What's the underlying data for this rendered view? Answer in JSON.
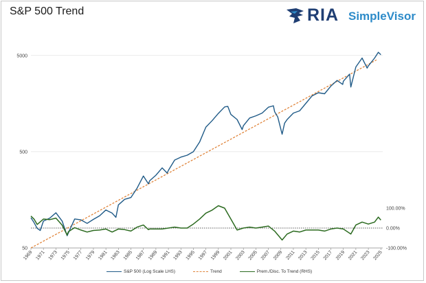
{
  "chart_data": {
    "type": "line",
    "title": "S&P 500 Trend",
    "logo": {
      "text_main": "RIA",
      "text_sub": "SimpleVisor"
    },
    "colors": {
      "sp500": "#1f5a87",
      "trend": "#e0843a",
      "premium": "#2b6a1f",
      "zero_line": "#222222"
    },
    "x_axis": {
      "ticks": [
        "1969",
        "1971",
        "1973",
        "1975",
        "1977",
        "1979",
        "1981",
        "1983",
        "1985",
        "1987",
        "1989",
        "1991",
        "1993",
        "1995",
        "1997",
        "1999",
        "2001",
        "2003",
        "2005",
        "2007",
        "2009",
        "2011",
        "2013",
        "2015",
        "2017",
        "2019",
        "2021",
        "2023",
        "2025"
      ],
      "range": [
        1969,
        2025.3
      ]
    },
    "y_axis_left": {
      "scale": "log",
      "ticks": [
        "5000",
        "500",
        "50"
      ],
      "tick_values": [
        5000,
        500,
        50
      ],
      "range": [
        50,
        9000
      ]
    },
    "y_axis_right": {
      "ticks": [
        "100.00%",
        "0.00%",
        "-100.00%"
      ],
      "tick_values": [
        100,
        0,
        -100
      ],
      "range": [
        -100,
        100
      ]
    },
    "trend": {
      "x": [
        1969,
        2024.3
      ],
      "y": [
        50,
        4500
      ]
    },
    "series": [
      {
        "name": "S&P 500 (Log Scale LHS)",
        "x": [
          1969,
          1969.5,
          1970,
          1970.5,
          1971,
          1972,
          1973,
          1974,
          1974.8,
          1975,
          1976,
          1977,
          1978,
          1979,
          1980,
          1981,
          1982,
          1982.6,
          1983,
          1984,
          1985,
          1986,
          1987,
          1987.8,
          1988,
          1989,
          1990,
          1990.8,
          1991,
          1992,
          1993,
          1994,
          1995,
          1996,
          1997,
          1998,
          1999,
          2000,
          2000.5,
          2001,
          2002,
          2002.8,
          2003,
          2004,
          2005,
          2006,
          2007,
          2007.8,
          2008,
          2008.5,
          2009.2,
          2009.6,
          2010,
          2011,
          2012,
          2013,
          2014,
          2015,
          2016,
          2017,
          2018,
          2018.9,
          2019,
          2020,
          2020.2,
          2021,
          2022,
          2022.8,
          2023,
          2024,
          2024.6,
          2025
        ],
        "y": [
          103,
          92,
          80,
          76,
          95,
          102,
          116,
          95,
          67,
          72,
          100,
          98,
          90,
          99,
          108,
          124,
          115,
          104,
          140,
          160,
          167,
          210,
          280,
          232,
          250,
          285,
          340,
          300,
          320,
          410,
          440,
          460,
          500,
          630,
          900,
          1050,
          1250,
          1460,
          1480,
          1220,
          1080,
          850,
          930,
          1120,
          1180,
          1260,
          1450,
          1500,
          1300,
          1150,
          760,
          990,
          1080,
          1260,
          1330,
          1590,
          1900,
          2050,
          2000,
          2400,
          2750,
          2500,
          2700,
          3200,
          2350,
          3800,
          4700,
          3700,
          3900,
          4700,
          5400,
          5100
        ]
      },
      {
        "name": "Prem./Disc. To Trend (RHS)",
        "x": [
          1969,
          1969.5,
          1970,
          1971,
          1972,
          1973,
          1974,
          1974.8,
          1975,
          1976,
          1977,
          1978,
          1979,
          1980,
          1981,
          1982,
          1983,
          1984,
          1985,
          1986,
          1987,
          1987.8,
          1988,
          1989,
          1990,
          1991,
          1992,
          1993,
          1994,
          1995,
          1996,
          1997,
          1998,
          1999,
          2000,
          2001,
          2002,
          2003,
          2004,
          2005,
          2006,
          2007,
          2008,
          2009.2,
          2010,
          2011,
          2012,
          2013,
          2014,
          2015,
          2016,
          2017,
          2018,
          2019,
          2020.2,
          2021,
          2022,
          2023,
          2024,
          2024.6,
          2025
        ],
        "y": [
          60,
          45,
          18,
          45,
          42,
          50,
          14,
          -35,
          -18,
          2,
          -10,
          -20,
          -12,
          -10,
          -5,
          -20,
          -5,
          -8,
          -15,
          5,
          15,
          -8,
          -5,
          -5,
          -5,
          0,
          5,
          0,
          0,
          20,
          45,
          75,
          90,
          112,
          100,
          45,
          -10,
          0,
          5,
          0,
          5,
          10,
          -15,
          -60,
          -30,
          -15,
          -20,
          -10,
          -10,
          -10,
          -15,
          -5,
          0,
          -5,
          -30,
          15,
          30,
          20,
          30,
          55,
          40
        ]
      }
    ],
    "legend": [
      {
        "label": "S&P 500 (Log Scale LHS)",
        "style": "solid",
        "color": "#1f5a87"
      },
      {
        "label": "Trend",
        "style": "dashed",
        "color": "#e0843a"
      },
      {
        "label": "Prem./Disc. To Trend (RHS)",
        "style": "solid",
        "color": "#2b6a1f"
      }
    ],
    "grid": "horizontal"
  }
}
